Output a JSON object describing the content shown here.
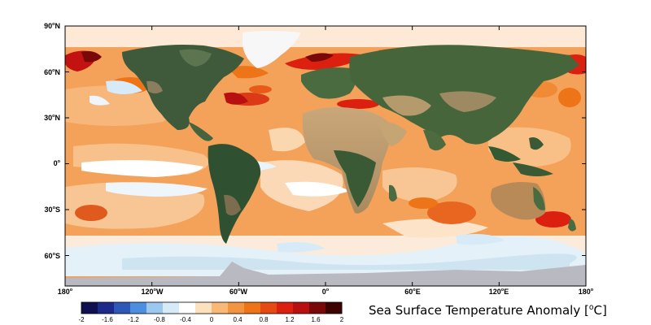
{
  "map": {
    "latitude_labels": [
      {
        "deg": "90",
        "hemi": "N"
      },
      {
        "deg": "60",
        "hemi": "N"
      },
      {
        "deg": "30",
        "hemi": "N"
      },
      {
        "deg": "0",
        "hemi": ""
      },
      {
        "deg": "30",
        "hemi": "S"
      },
      {
        "deg": "60",
        "hemi": "S"
      }
    ],
    "longitude_labels": [
      {
        "deg": "180",
        "hemi": ""
      },
      {
        "deg": "120",
        "hemi": "W"
      },
      {
        "deg": "60",
        "hemi": "W"
      },
      {
        "deg": "0",
        "hemi": ""
      },
      {
        "deg": "60",
        "hemi": "E"
      },
      {
        "deg": "120",
        "hemi": "E"
      },
      {
        "deg": "180",
        "hemi": ""
      }
    ],
    "degree_symbol": "o"
  },
  "colorbar": {
    "title_prefix": "Sea Surface Temperature Anomaly  [",
    "title_unit_sup": "o",
    "title_unit": "C]",
    "tick_labels": [
      "-2",
      "-1.6",
      "-1.2",
      "-0.8",
      "-0.4",
      "0",
      "0.4",
      "0.8",
      "1.2",
      "1.6",
      "2"
    ],
    "colors": [
      "#101050",
      "#1c2a8a",
      "#2d58b8",
      "#4e8ee0",
      "#9cc8ef",
      "#d6ebf7",
      "#ffffff",
      "#fde0bd",
      "#f8b877",
      "#f39440",
      "#ee7418",
      "#e54a14",
      "#dc2010",
      "#b81010",
      "#7a0808",
      "#3d0303"
    ]
  }
}
